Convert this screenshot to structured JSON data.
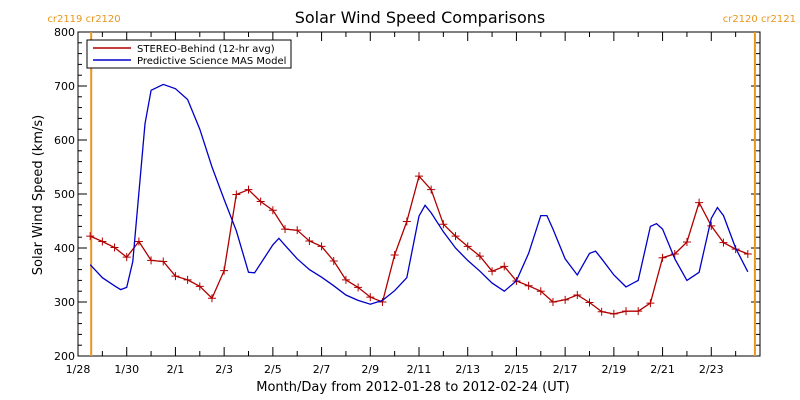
{
  "chart_data": {
    "type": "line",
    "title": "Solar Wind Speed Comparisons",
    "xlabel": "Month/Day from 2012-01-28 to 2012-02-24 (UT)",
    "ylabel": "Solar Wind Speed (km/s)",
    "xlim": [
      "2012-01-28",
      "2012-02-25"
    ],
    "ylim": [
      200,
      800
    ],
    "x_ticks": [
      {
        "date": "2012-01-28",
        "label": "1/28"
      },
      {
        "date": "2012-01-30",
        "label": "1/30"
      },
      {
        "date": "2012-02-01",
        "label": "2/1"
      },
      {
        "date": "2012-02-03",
        "label": "2/3"
      },
      {
        "date": "2012-02-05",
        "label": "2/5"
      },
      {
        "date": "2012-02-07",
        "label": "2/7"
      },
      {
        "date": "2012-02-09",
        "label": "2/9"
      },
      {
        "date": "2012-02-11",
        "label": "2/11"
      },
      {
        "date": "2012-02-13",
        "label": "2/13"
      },
      {
        "date": "2012-02-15",
        "label": "2/15"
      },
      {
        "date": "2012-02-17",
        "label": "2/17"
      },
      {
        "date": "2012-02-19",
        "label": "2/19"
      },
      {
        "date": "2012-02-21",
        "label": "2/21"
      },
      {
        "date": "2012-02-23",
        "label": "2/23"
      }
    ],
    "y_ticks": [
      200,
      300,
      400,
      500,
      600,
      700,
      800
    ],
    "legend_position": "top-left",
    "markers": [
      {
        "date": "2012-01-28T13:00",
        "left_label": "cr2119",
        "right_label": "cr2120",
        "side": "left"
      },
      {
        "date": "2012-02-24T19:00",
        "left_label": "cr2120",
        "right_label": "cr2121",
        "side": "right"
      }
    ],
    "marker_color": "#e8961e",
    "series": [
      {
        "name": "STEREO-Behind (12-hr avg)",
        "color": "#b00000",
        "marker": "plus",
        "points": [
          [
            "2012-01-28T12:00",
            422
          ],
          [
            "2012-01-29T00:00",
            412
          ],
          [
            "2012-01-29T12:00",
            401
          ],
          [
            "2012-01-30T00:00",
            383
          ],
          [
            "2012-01-30T12:00",
            412
          ],
          [
            "2012-01-31T00:00",
            377
          ],
          [
            "2012-01-31T12:00",
            375
          ],
          [
            "2012-02-01T00:00",
            348
          ],
          [
            "2012-02-01T12:00",
            341
          ],
          [
            "2012-02-02T00:00",
            329
          ],
          [
            "2012-02-02T12:00",
            307
          ],
          [
            "2012-02-03T00:00",
            358
          ],
          [
            "2012-02-03T12:00",
            499
          ],
          [
            "2012-02-04T00:00",
            508
          ],
          [
            "2012-02-04T12:00",
            486
          ],
          [
            "2012-02-05T00:00",
            470
          ],
          [
            "2012-02-05T12:00",
            435
          ],
          [
            "2012-02-06T00:00",
            433
          ],
          [
            "2012-02-06T12:00",
            413
          ],
          [
            "2012-02-07T00:00",
            403
          ],
          [
            "2012-02-07T12:00",
            376
          ],
          [
            "2012-02-08T00:00",
            341
          ],
          [
            "2012-02-08T12:00",
            327
          ],
          [
            "2012-02-09T00:00",
            309
          ],
          [
            "2012-02-09T12:00",
            300
          ],
          [
            "2012-02-10T00:00",
            387
          ],
          [
            "2012-02-10T12:00",
            449
          ],
          [
            "2012-02-11T00:00",
            533
          ],
          [
            "2012-02-11T12:00",
            508
          ],
          [
            "2012-02-12T00:00",
            444
          ],
          [
            "2012-02-12T12:00",
            422
          ],
          [
            "2012-02-13T00:00",
            403
          ],
          [
            "2012-02-13T12:00",
            385
          ],
          [
            "2012-02-14T00:00",
            357
          ],
          [
            "2012-02-14T12:00",
            366
          ],
          [
            "2012-02-15T00:00",
            339
          ],
          [
            "2012-02-15T12:00",
            330
          ],
          [
            "2012-02-16T00:00",
            320
          ],
          [
            "2012-02-16T12:00",
            300
          ],
          [
            "2012-02-17T00:00",
            304
          ],
          [
            "2012-02-17T12:00",
            313
          ],
          [
            "2012-02-18T00:00",
            299
          ],
          [
            "2012-02-18T12:00",
            282
          ],
          [
            "2012-02-19T00:00",
            278
          ],
          [
            "2012-02-19T12:00",
            283
          ],
          [
            "2012-02-20T00:00",
            283
          ],
          [
            "2012-02-20T12:00",
            298
          ],
          [
            "2012-02-21T00:00",
            382
          ],
          [
            "2012-02-21T12:00",
            389
          ],
          [
            "2012-02-22T00:00",
            411
          ],
          [
            "2012-02-22T12:00",
            484
          ],
          [
            "2012-02-23T00:00",
            441
          ],
          [
            "2012-02-23T12:00",
            410
          ],
          [
            "2012-02-24T00:00",
            398
          ],
          [
            "2012-02-24T12:00",
            389
          ]
        ]
      },
      {
        "name": "Predictive Science MAS Model",
        "color": "#0000c8",
        "marker": "none",
        "points": [
          [
            "2012-01-28T12:00",
            369
          ],
          [
            "2012-01-29T00:00",
            345
          ],
          [
            "2012-01-29T12:00",
            330
          ],
          [
            "2012-01-29T18:00",
            323
          ],
          [
            "2012-01-30T00:00",
            327
          ],
          [
            "2012-01-30T06:00",
            375
          ],
          [
            "2012-01-30T18:00",
            630
          ],
          [
            "2012-01-31T00:00",
            692
          ],
          [
            "2012-01-31T12:00",
            703
          ],
          [
            "2012-02-01T00:00",
            695
          ],
          [
            "2012-02-01T12:00",
            675
          ],
          [
            "2012-02-02T00:00",
            620
          ],
          [
            "2012-02-02T12:00",
            550
          ],
          [
            "2012-02-03T00:00",
            490
          ],
          [
            "2012-02-03T12:00",
            432
          ],
          [
            "2012-02-04T00:00",
            355
          ],
          [
            "2012-02-04T06:00",
            354
          ],
          [
            "2012-02-05T00:00",
            406
          ],
          [
            "2012-02-05T06:00",
            418
          ],
          [
            "2012-02-05T12:00",
            405
          ],
          [
            "2012-02-06T00:00",
            380
          ],
          [
            "2012-02-06T12:00",
            360
          ],
          [
            "2012-02-07T00:00",
            346
          ],
          [
            "2012-02-07T12:00",
            330
          ],
          [
            "2012-02-08T00:00",
            313
          ],
          [
            "2012-02-08T12:00",
            303
          ],
          [
            "2012-02-09T00:00",
            296
          ],
          [
            "2012-02-09T12:00",
            303
          ],
          [
            "2012-02-10T00:00",
            321
          ],
          [
            "2012-02-10T12:00",
            345
          ],
          [
            "2012-02-11T00:00",
            459
          ],
          [
            "2012-02-11T06:00",
            479
          ],
          [
            "2012-02-11T12:00",
            465
          ],
          [
            "2012-02-12T00:00",
            430
          ],
          [
            "2012-02-12T12:00",
            400
          ],
          [
            "2012-02-13T00:00",
            377
          ],
          [
            "2012-02-13T12:00",
            357
          ],
          [
            "2012-02-14T00:00",
            335
          ],
          [
            "2012-02-14T12:00",
            320
          ],
          [
            "2012-02-15T00:00",
            339
          ],
          [
            "2012-02-15T12:00",
            390
          ],
          [
            "2012-02-16T00:00",
            460
          ],
          [
            "2012-02-16T06:00",
            460
          ],
          [
            "2012-02-16T12:00",
            435
          ],
          [
            "2012-02-17T00:00",
            380
          ],
          [
            "2012-02-17T12:00",
            350
          ],
          [
            "2012-02-18T00:00",
            390
          ],
          [
            "2012-02-18T06:00",
            394
          ],
          [
            "2012-02-18T12:00",
            380
          ],
          [
            "2012-02-19T00:00",
            350
          ],
          [
            "2012-02-19T12:00",
            328
          ],
          [
            "2012-02-20T00:00",
            340
          ],
          [
            "2012-02-20T12:00",
            440
          ],
          [
            "2012-02-20T18:00",
            445
          ],
          [
            "2012-02-21T00:00",
            435
          ],
          [
            "2012-02-21T12:00",
            380
          ],
          [
            "2012-02-22T00:00",
            340
          ],
          [
            "2012-02-22T12:00",
            355
          ],
          [
            "2012-02-23T00:00",
            455
          ],
          [
            "2012-02-23T06:00",
            475
          ],
          [
            "2012-02-23T12:00",
            460
          ],
          [
            "2012-02-24T00:00",
            400
          ],
          [
            "2012-02-24T12:00",
            356
          ]
        ]
      }
    ]
  }
}
